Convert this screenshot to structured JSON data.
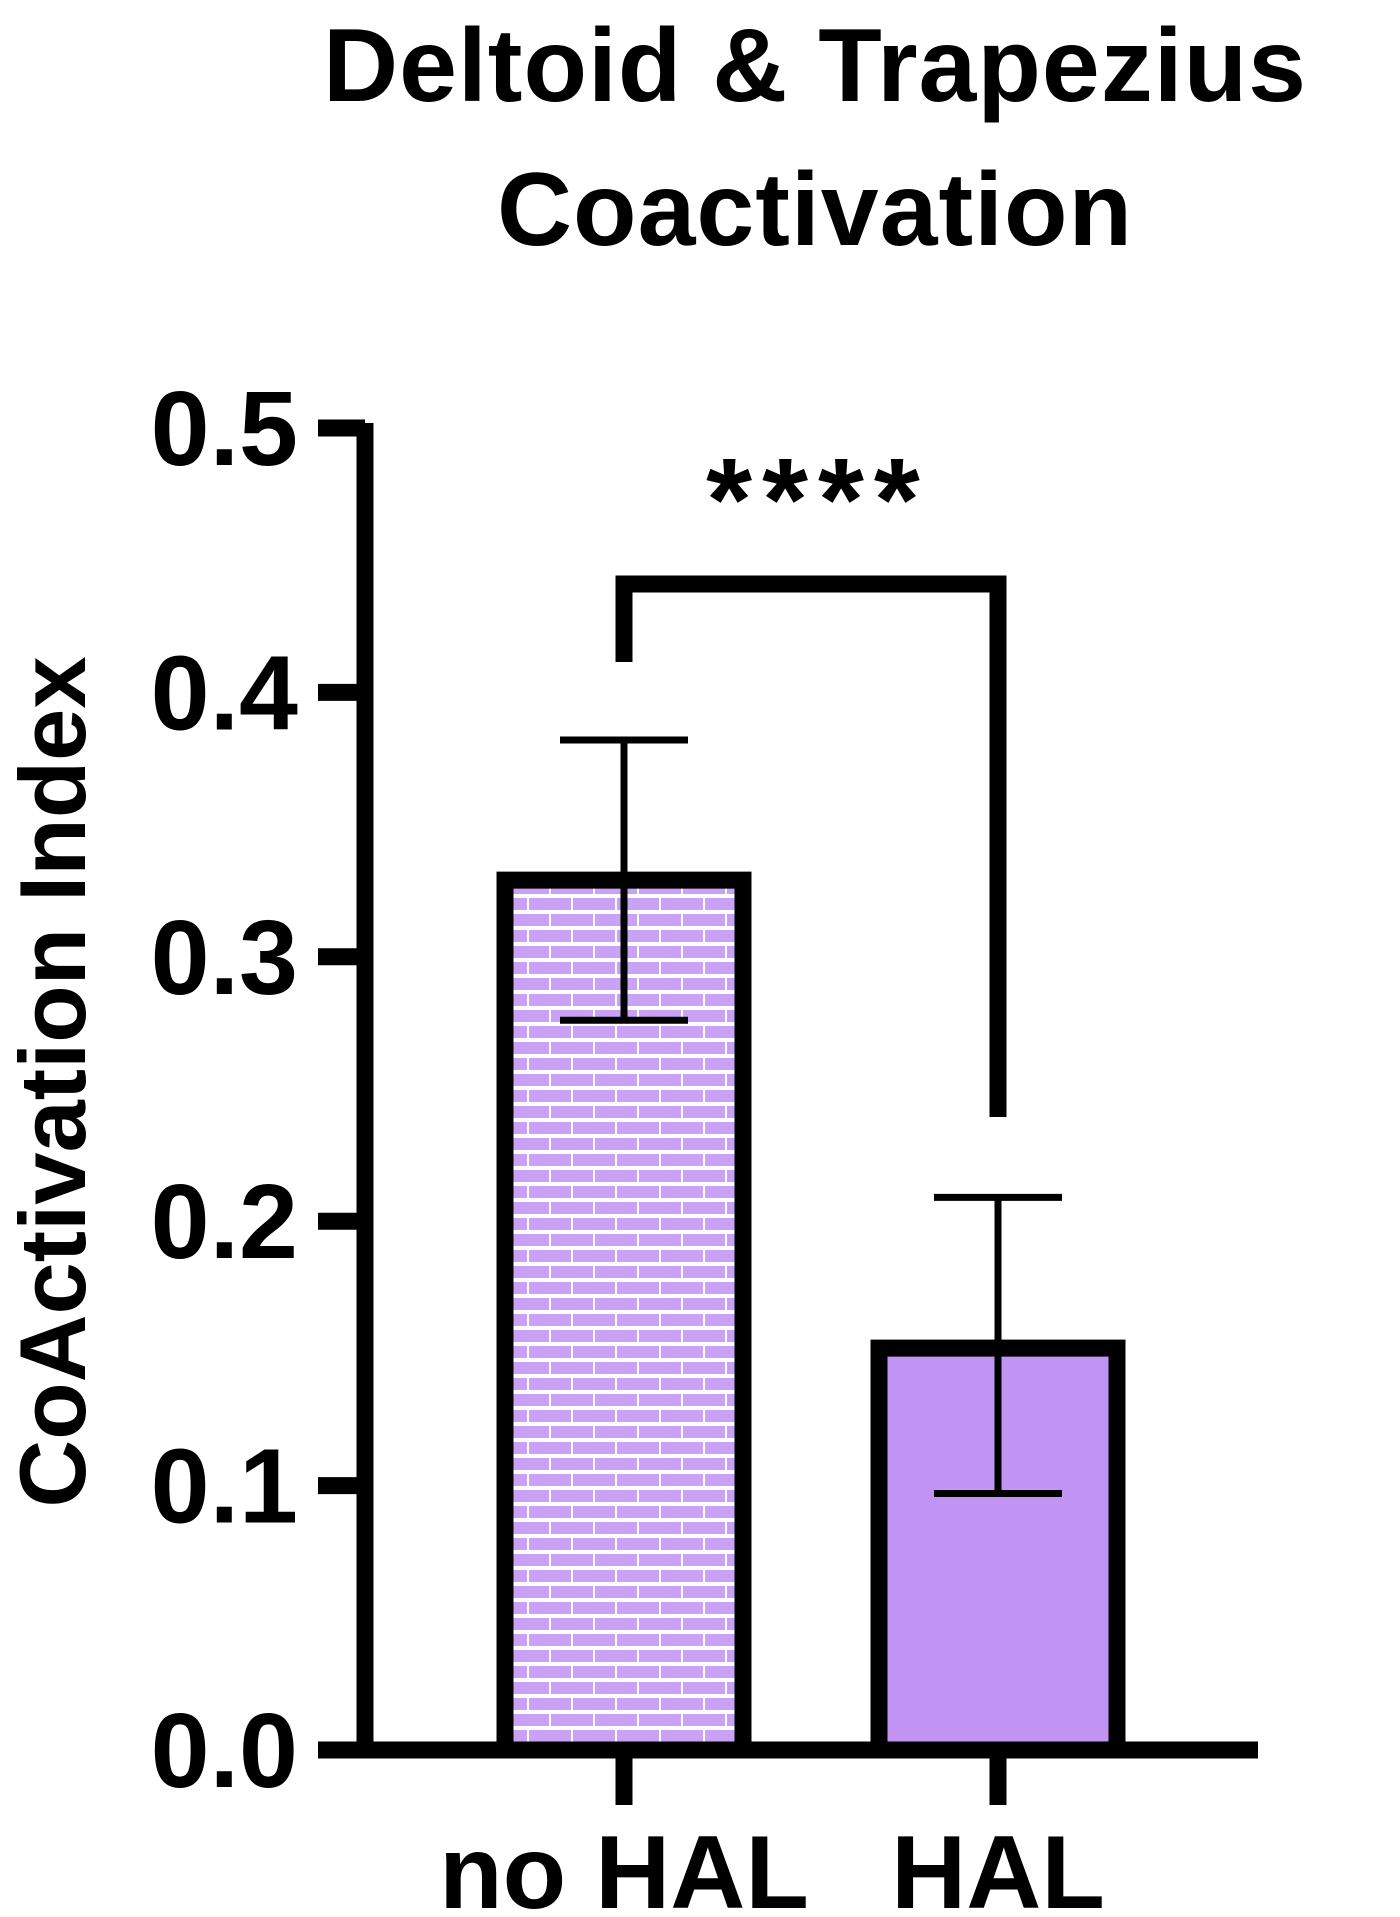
{
  "chart_data": {
    "type": "bar",
    "title": [
      "Deltoid & Trapezius",
      "Coactivation"
    ],
    "ylabel": "CoActivation Index",
    "xlabel": "",
    "categories": [
      "no HAL",
      "HAL"
    ],
    "values": [
      0.329,
      0.152
    ],
    "error_upper": [
      0.382,
      0.209
    ],
    "error_lower": [
      0.276,
      0.097
    ],
    "fill_colors": [
      "#c9a2f5",
      "#c194f4"
    ],
    "fill_pattern": [
      "brick",
      "solid"
    ],
    "ylim": [
      0,
      0.5
    ],
    "yticks": [
      "0.0",
      "0.1",
      "0.2",
      "0.3",
      "0.4",
      "0.5"
    ],
    "grid": false,
    "significance": {
      "label": "****",
      "between": [
        "no HAL",
        "HAL"
      ]
    }
  }
}
